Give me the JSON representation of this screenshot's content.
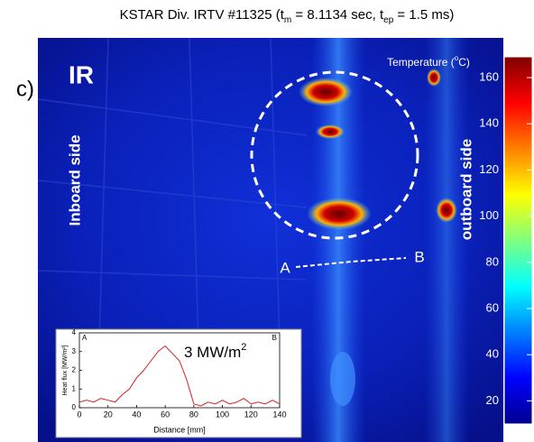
{
  "title": [
    "KSTAR Div. IRTV #11325 (t",
    "m",
    " = 8.1134 sec, t",
    "ep",
    " = 1.5 ms)"
  ],
  "panel_label": "c)",
  "image": {
    "mode_label": "IR",
    "inboard_label": "Inboard side",
    "outboard_label": "outboard side",
    "point_a": "A",
    "point_b": "B"
  },
  "colorbar": {
    "label": [
      "Temperature (",
      "o",
      "C)"
    ],
    "clim": [
      10,
      169
    ],
    "ticks": [
      20,
      40,
      60,
      80,
      100,
      120,
      140,
      160
    ]
  },
  "inset": {
    "type": "line",
    "corner_a": "A",
    "corner_b": "B",
    "annotation": [
      "3 MW/m",
      "2"
    ],
    "xlabel": "Distance [mm]",
    "ylabel": "Heat flux [MW/m²]",
    "xlim": [
      0,
      140
    ],
    "ylim": [
      0,
      4
    ],
    "xticks": [
      0,
      20,
      40,
      60,
      80,
      100,
      120,
      140
    ],
    "yticks": [
      0,
      1,
      2,
      3,
      4
    ],
    "color": "#d42020",
    "x": [
      0,
      5,
      10,
      15,
      20,
      25,
      30,
      35,
      40,
      45,
      50,
      55,
      60,
      65,
      70,
      75,
      80,
      85,
      90,
      95,
      100,
      105,
      110,
      115,
      120,
      125,
      130,
      135,
      140
    ],
    "values": [
      0.3,
      0.4,
      0.3,
      0.5,
      0.4,
      0.3,
      0.7,
      1.0,
      1.6,
      2.0,
      2.5,
      3.0,
      3.3,
      2.9,
      2.5,
      1.5,
      0.2,
      0.1,
      0.3,
      0.2,
      0.4,
      0.2,
      0.3,
      0.5,
      0.2,
      0.3,
      0.2,
      0.4,
      0.2
    ]
  }
}
